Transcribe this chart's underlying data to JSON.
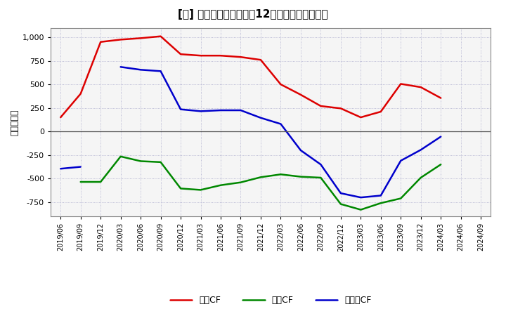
{
  "title": "[⑔] キャッシュフローの12か月移動合計の推移",
  "ylabel": "（百万円）",
  "background_color": "#ffffff",
  "plot_background": "#f5f5f5",
  "grid_color": "#aaaacc",
  "x_labels": [
    "2019/06",
    "2019/09",
    "2019/12",
    "2020/03",
    "2020/06",
    "2020/09",
    "2020/12",
    "2021/03",
    "2021/06",
    "2021/09",
    "2021/12",
    "2022/03",
    "2022/06",
    "2022/09",
    "2022/12",
    "2023/03",
    "2023/06",
    "2023/09",
    "2023/12",
    "2024/03",
    "2024/06",
    "2024/09"
  ],
  "operating_cf": [
    150,
    400,
    950,
    975,
    990,
    1010,
    820,
    805,
    805,
    790,
    760,
    500,
    390,
    270,
    245,
    150,
    210,
    505,
    470,
    355,
    null,
    null
  ],
  "investing_cf": [
    null,
    -535,
    -535,
    -265,
    -315,
    -325,
    -605,
    -620,
    -570,
    -540,
    -485,
    -455,
    -480,
    -490,
    -770,
    -830,
    -760,
    -710,
    -490,
    -350,
    null,
    null
  ],
  "free_cf": [
    -395,
    -375,
    null,
    685,
    655,
    640,
    235,
    215,
    225,
    225,
    145,
    80,
    -200,
    -350,
    -655,
    -700,
    -680,
    -310,
    -195,
    -55,
    null,
    null
  ],
  "ylim": [
    -900,
    1100
  ],
  "yticks": [
    -750,
    -500,
    -250,
    0,
    250,
    500,
    750,
    1000
  ],
  "line_colors": {
    "operating": "#dd0000",
    "investing": "#008800",
    "free": "#0000cc"
  },
  "legend_labels": [
    "営業CF",
    "投資CF",
    "フリーCF"
  ],
  "title_bracket": "[⑔]",
  "title_main": "キャッシュフローの12か月移動合計の推移"
}
